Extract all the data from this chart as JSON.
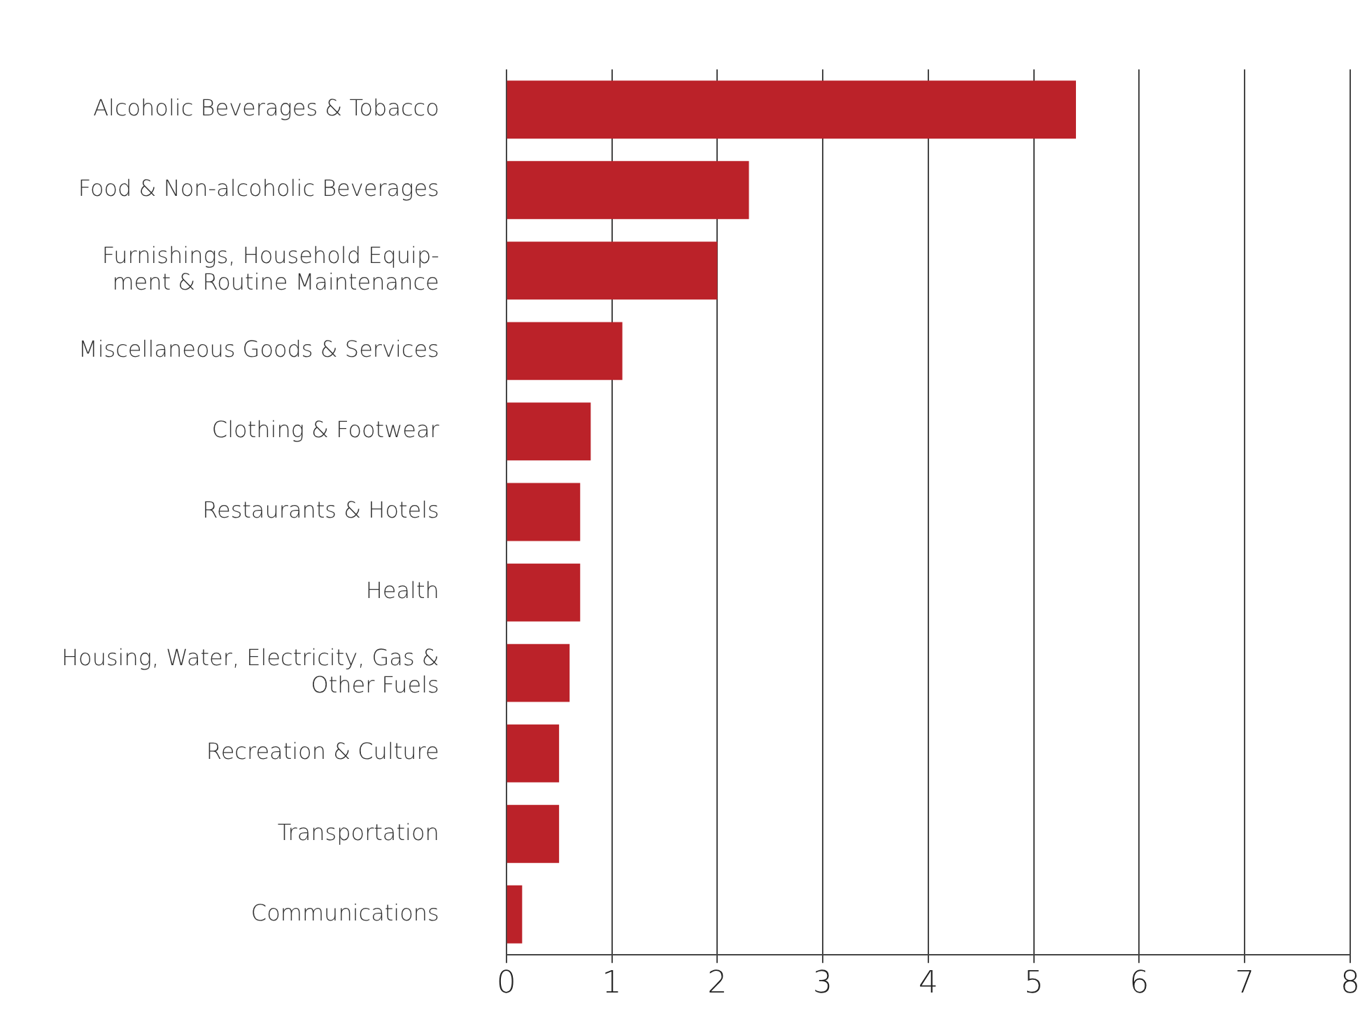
{
  "chart_data": {
    "type": "bar",
    "orientation": "horizontal",
    "categories": [
      "Alcoholic Beverages & Tobacco",
      "Food & Non-alcoholic Beverages",
      "Furnishings, Household Equip-\nment & Routine Maintenance",
      "Miscellaneous Goods & Services",
      "Clothing & Footwear",
      "Restaurants & Hotels",
      "Health",
      "Housing, Water, Electricity, Gas &\nOther Fuels",
      "Recreation & Culture",
      "Transportation",
      "Communications"
    ],
    "values": [
      5.4,
      2.3,
      2.0,
      1.1,
      0.8,
      0.7,
      0.7,
      0.6,
      0.5,
      0.5,
      0.15
    ],
    "color": "#bb2229",
    "xlim": [
      0,
      8
    ],
    "xticks": [
      0,
      1,
      2,
      3,
      4,
      5,
      6,
      7,
      8
    ],
    "grid": "x",
    "legend": false
  }
}
